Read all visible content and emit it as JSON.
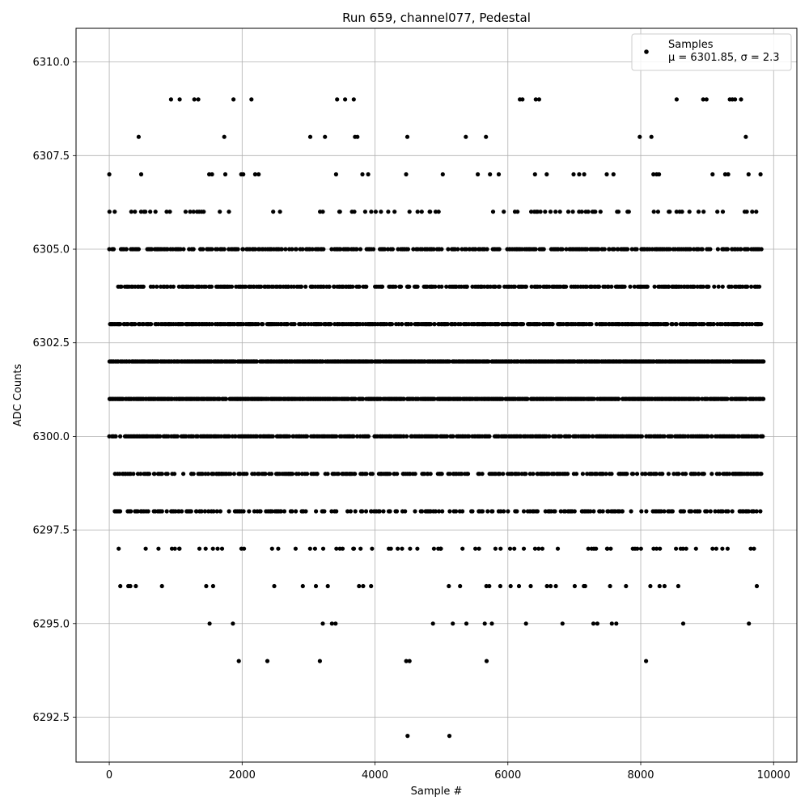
{
  "chart_data": {
    "type": "scatter",
    "title": "Run 659, channel077, Pedestal",
    "xlabel": "Sample #",
    "ylabel": "ADC Counts",
    "xlim": [
      -500,
      10350
    ],
    "ylim": [
      6291.3,
      6310.9
    ],
    "xticks": [
      0,
      2000,
      4000,
      6000,
      8000,
      10000
    ],
    "xtick_labels": [
      "0",
      "2000",
      "4000",
      "6000",
      "8000",
      "10000"
    ],
    "yticks": [
      6292.5,
      6295.0,
      6297.5,
      6300.0,
      6302.5,
      6305.0,
      6307.5,
      6310.0
    ],
    "ytick_labels": [
      "6292.5",
      "6295.0",
      "6297.5",
      "6300.0",
      "6302.5",
      "6305.0",
      "6307.5",
      "6310.0"
    ],
    "grid": true,
    "legend": {
      "position": "top-right",
      "entries": [
        "Samples",
        "μ = 6301.85, σ = 2.3"
      ]
    },
    "marker_color": "#000000",
    "x_range": [
      0,
      9850
    ],
    "series": [
      {
        "name": "Samples",
        "level_density": [
          {
            "y": 6309,
            "fraction": 0.004
          },
          {
            "y": 6308,
            "fraction": 0.012
          },
          {
            "y": 6307,
            "fraction": 0.04
          },
          {
            "y": 6306,
            "fraction": 0.12
          },
          {
            "y": 6305,
            "fraction": 0.5
          },
          {
            "y": 6304,
            "fraction": 0.45
          },
          {
            "y": 6303,
            "fraction": 0.6
          },
          {
            "y": 6302,
            "fraction": 0.9
          },
          {
            "y": 6301,
            "fraction": 0.85
          },
          {
            "y": 6300,
            "fraction": 0.65
          },
          {
            "y": 6299,
            "fraction": 0.45
          },
          {
            "y": 6298,
            "fraction": 0.3
          },
          {
            "y": 6297,
            "fraction": 0.1
          },
          {
            "y": 6296,
            "fraction": 0.05
          },
          {
            "y": 6295,
            "fraction": 0.02
          }
        ],
        "sparse_points": [
          {
            "x": 1950,
            "y": 6294
          },
          {
            "x": 2380,
            "y": 6294
          },
          {
            "x": 3170,
            "y": 6294
          },
          {
            "x": 4470,
            "y": 6294
          },
          {
            "x": 4520,
            "y": 6294
          },
          {
            "x": 5680,
            "y": 6294
          },
          {
            "x": 8080,
            "y": 6294
          },
          {
            "x": 4490,
            "y": 6292
          },
          {
            "x": 5120,
            "y": 6292
          },
          {
            "x": 930,
            "y": 6309
          },
          {
            "x": 1060,
            "y": 6309
          },
          {
            "x": 1280,
            "y": 6309
          },
          {
            "x": 1340,
            "y": 6309
          },
          {
            "x": 1870,
            "y": 6309
          },
          {
            "x": 2140,
            "y": 6309
          },
          {
            "x": 3430,
            "y": 6309
          },
          {
            "x": 3550,
            "y": 6309
          },
          {
            "x": 3680,
            "y": 6309
          },
          {
            "x": 6180,
            "y": 6309
          },
          {
            "x": 6220,
            "y": 6309
          },
          {
            "x": 6420,
            "y": 6309
          },
          {
            "x": 6470,
            "y": 6309
          },
          {
            "x": 8540,
            "y": 6309
          },
          {
            "x": 8940,
            "y": 6309
          },
          {
            "x": 8990,
            "y": 6309
          },
          {
            "x": 9340,
            "y": 6309
          },
          {
            "x": 9380,
            "y": 6309
          },
          {
            "x": 9420,
            "y": 6309
          },
          {
            "x": 9510,
            "y": 6309
          }
        ]
      }
    ]
  }
}
